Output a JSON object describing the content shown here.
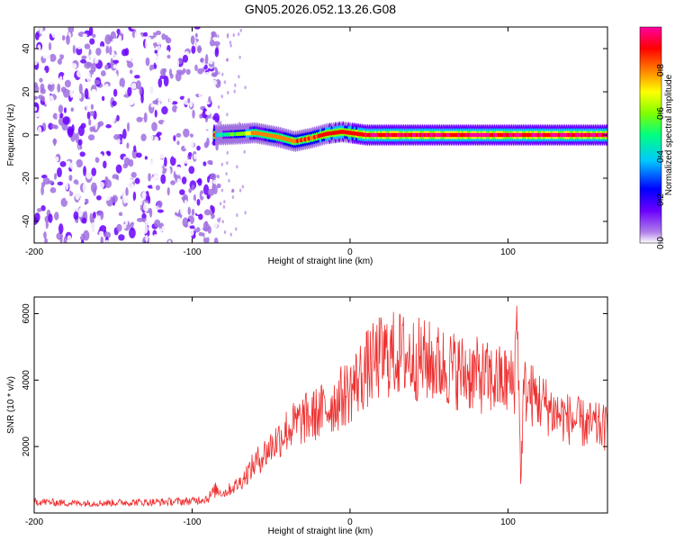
{
  "chart_data": [
    {
      "type": "heatmap",
      "title": "GN05.2026.052.13.26.G08",
      "xlabel": "Height of straight line (km)",
      "ylabel": "Frequency (Hz)",
      "xlim": [
        -200,
        163
      ],
      "ylim": [
        -50,
        50
      ],
      "xticks": [
        -200,
        -100,
        0,
        100
      ],
      "yticks": [
        -40,
        -20,
        0,
        20,
        40
      ],
      "colorbar": {
        "label": "Normalized spectral amplitude",
        "range": [
          0,
          1
        ],
        "ticks": [
          "0.0",
          "0.2",
          "0.4",
          "0.6",
          "0.8"
        ],
        "colors": [
          "#ffffff",
          "#a070e0",
          "#6a00ff",
          "#0000ff",
          "#00c8ff",
          "#00ff80",
          "#80ff00",
          "#ffff00",
          "#ff8000",
          "#ff0000",
          "#ff00a0"
        ]
      },
      "signal_track": [
        {
          "x": -85,
          "freq": 0,
          "amp": 0.4
        },
        {
          "x": -70,
          "freq": 0.5,
          "amp": 0.6
        },
        {
          "x": -60,
          "freq": 1,
          "amp": 0.8
        },
        {
          "x": -45,
          "freq": -1,
          "amp": 0.8
        },
        {
          "x": -35,
          "freq": -3,
          "amp": 0.85
        },
        {
          "x": -25,
          "freq": -1.5,
          "amp": 0.85
        },
        {
          "x": -15,
          "freq": 0.5,
          "amp": 0.9
        },
        {
          "x": -5,
          "freq": 1.5,
          "amp": 0.9
        },
        {
          "x": 10,
          "freq": 0,
          "amp": 0.95
        },
        {
          "x": 50,
          "freq": 0,
          "amp": 0.95
        },
        {
          "x": 100,
          "freq": 0,
          "amp": 0.95
        },
        {
          "x": 163,
          "freq": 0,
          "amp": 0.95
        }
      ]
    },
    {
      "type": "line",
      "xlabel": "Height of straight line (km)",
      "ylabel": "SNR (10 * v/v)",
      "xlim": [
        -200,
        163
      ],
      "ylim": [
        0,
        6500
      ],
      "xticks": [
        -200,
        -100,
        0,
        100
      ],
      "yticks": [
        2000,
        4000,
        6000
      ],
      "series": [
        {
          "name": "SNR",
          "color": "#ee3030",
          "x": [
            -200,
            -180,
            -160,
            -140,
            -120,
            -100,
            -90,
            -85,
            -80,
            -70,
            -60,
            -50,
            -40,
            -30,
            -20,
            -10,
            0,
            10,
            20,
            30,
            40,
            50,
            60,
            70,
            80,
            90,
            100,
            104,
            106,
            108,
            110,
            120,
            130,
            140,
            150,
            163
          ],
          "y": [
            350,
            300,
            300,
            320,
            330,
            360,
            450,
            700,
            600,
            900,
            1500,
            2000,
            2500,
            2800,
            3000,
            3300,
            3700,
            4300,
            4700,
            4800,
            4650,
            4550,
            4400,
            4250,
            4150,
            4000,
            3950,
            3900,
            6300,
            900,
            3700,
            3400,
            3000,
            2800,
            2650,
            2550
          ]
        }
      ]
    }
  ]
}
